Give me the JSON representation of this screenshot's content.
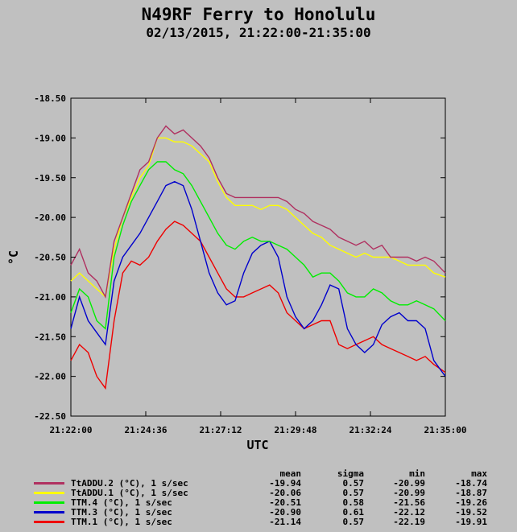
{
  "header": {
    "title": "N49RF Ferry to Honolulu",
    "subtitle": "02/13/2015, 21:22:00-21:35:00"
  },
  "chart_data": {
    "type": "line",
    "title": "N49RF Ferry to Honolulu",
    "subtitle": "02/13/2015, 21:22:00-21:35:00",
    "xlabel": "UTC",
    "ylabel": "°C",
    "x_ticks": [
      "21:22:00",
      "21:24:36",
      "21:27:12",
      "21:29:48",
      "21:32:24",
      "21:35:00"
    ],
    "y_ticks": [
      "-18.50",
      "-19.00",
      "-19.50",
      "-20.00",
      "-20.50",
      "-21.00",
      "-21.50",
      "-22.00",
      "-22.50"
    ],
    "xlim_minutes": [
      0,
      13
    ],
    "ylim": [
      -22.5,
      -18.5
    ],
    "grid": false,
    "x": [
      0,
      0.3,
      0.6,
      0.9,
      1.2,
      1.5,
      1.8,
      2.1,
      2.4,
      2.7,
      3.0,
      3.3,
      3.6,
      3.9,
      4.2,
      4.5,
      4.8,
      5.1,
      5.4,
      5.7,
      6.0,
      6.3,
      6.6,
      6.9,
      7.2,
      7.5,
      7.8,
      8.1,
      8.4,
      8.7,
      9.0,
      9.3,
      9.6,
      9.9,
      10.2,
      10.5,
      10.8,
      11.1,
      11.4,
      11.7,
      12.0,
      12.3,
      12.6,
      13.0
    ],
    "series": [
      {
        "name": "TtADDU.2 (°C), 1 s/sec",
        "color": "#b03060",
        "stats": {
          "mean": "-19.94",
          "sigma": "0.57",
          "min": "-20.99",
          "max": "-18.74"
        },
        "values": [
          -20.6,
          -20.4,
          -20.7,
          -20.8,
          -21.0,
          -20.3,
          -20.0,
          -19.7,
          -19.4,
          -19.3,
          -19.0,
          -18.85,
          -18.95,
          -18.9,
          -19.0,
          -19.1,
          -19.25,
          -19.5,
          -19.7,
          -19.75,
          -19.75,
          -19.75,
          -19.75,
          -19.75,
          -19.75,
          -19.8,
          -19.9,
          -19.95,
          -20.05,
          -20.1,
          -20.15,
          -20.25,
          -20.3,
          -20.35,
          -20.3,
          -20.4,
          -20.35,
          -20.5,
          -20.5,
          -20.5,
          -20.55,
          -20.5,
          -20.55,
          -20.7
        ]
      },
      {
        "name": "TtADDU.1 (°C), 1 s/sec",
        "color": "#ffff00",
        "stats": {
          "mean": "-20.06",
          "sigma": "0.57",
          "min": "-20.99",
          "max": "-18.87"
        },
        "values": [
          -20.8,
          -20.7,
          -20.8,
          -20.9,
          -21.0,
          -20.4,
          -20.0,
          -19.75,
          -19.5,
          -19.35,
          -19.0,
          -19.0,
          -19.05,
          -19.05,
          -19.1,
          -19.2,
          -19.3,
          -19.55,
          -19.75,
          -19.85,
          -19.85,
          -19.85,
          -19.9,
          -19.85,
          -19.85,
          -19.9,
          -20.0,
          -20.1,
          -20.2,
          -20.25,
          -20.35,
          -20.4,
          -20.45,
          -20.5,
          -20.45,
          -20.5,
          -20.5,
          -20.5,
          -20.55,
          -20.6,
          -20.6,
          -20.6,
          -20.7,
          -20.75
        ]
      },
      {
        "name": "TTM.4 (°C), 1 s/sec",
        "color": "#00ee00",
        "stats": {
          "mean": "-20.51",
          "sigma": "0.58",
          "min": "-21.56",
          "max": "-19.26"
        },
        "values": [
          -21.2,
          -20.9,
          -21.0,
          -21.3,
          -21.4,
          -20.5,
          -20.1,
          -19.8,
          -19.6,
          -19.4,
          -19.3,
          -19.3,
          -19.4,
          -19.45,
          -19.6,
          -19.8,
          -20.0,
          -20.2,
          -20.35,
          -20.4,
          -20.3,
          -20.25,
          -20.3,
          -20.3,
          -20.35,
          -20.4,
          -20.5,
          -20.6,
          -20.75,
          -20.7,
          -20.7,
          -20.8,
          -20.95,
          -21.0,
          -21.0,
          -20.9,
          -20.95,
          -21.05,
          -21.1,
          -21.1,
          -21.05,
          -21.1,
          -21.15,
          -21.3
        ]
      },
      {
        "name": "TTM.3 (°C), 1 s/sec",
        "color": "#0000cc",
        "stats": {
          "mean": "-20.90",
          "sigma": "0.61",
          "min": "-22.12",
          "max": "-19.52"
        },
        "values": [
          -21.4,
          -21.0,
          -21.3,
          -21.45,
          -21.6,
          -20.8,
          -20.5,
          -20.35,
          -20.2,
          -20.0,
          -19.8,
          -19.6,
          -19.55,
          -19.6,
          -19.9,
          -20.3,
          -20.7,
          -20.95,
          -21.1,
          -21.05,
          -20.7,
          -20.45,
          -20.35,
          -20.3,
          -20.5,
          -21.0,
          -21.25,
          -21.4,
          -21.3,
          -21.1,
          -20.85,
          -20.9,
          -21.4,
          -21.6,
          -21.7,
          -21.6,
          -21.35,
          -21.25,
          -21.2,
          -21.3,
          -21.3,
          -21.4,
          -21.8,
          -22.0
        ]
      },
      {
        "name": "TTM.1 (°C), 1 s/sec",
        "color": "#ee0000",
        "stats": {
          "mean": "-21.14",
          "sigma": "0.57",
          "min": "-22.19",
          "max": "-19.91"
        },
        "values": [
          -21.8,
          -21.6,
          -21.7,
          -22.0,
          -22.15,
          -21.3,
          -20.7,
          -20.55,
          -20.6,
          -20.5,
          -20.3,
          -20.15,
          -20.05,
          -20.1,
          -20.2,
          -20.3,
          -20.5,
          -20.7,
          -20.9,
          -21.0,
          -21.0,
          -20.95,
          -20.9,
          -20.85,
          -20.95,
          -21.2,
          -21.3,
          -21.4,
          -21.35,
          -21.3,
          -21.3,
          -21.6,
          -21.65,
          -21.6,
          -21.55,
          -21.5,
          -21.6,
          -21.65,
          -21.7,
          -21.75,
          -21.8,
          -21.75,
          -21.85,
          -21.95
        ]
      }
    ],
    "legend_headers": {
      "mean": "mean",
      "sigma": "sigma",
      "min": "min",
      "max": "max"
    },
    "legend_placement": "bottom"
  }
}
